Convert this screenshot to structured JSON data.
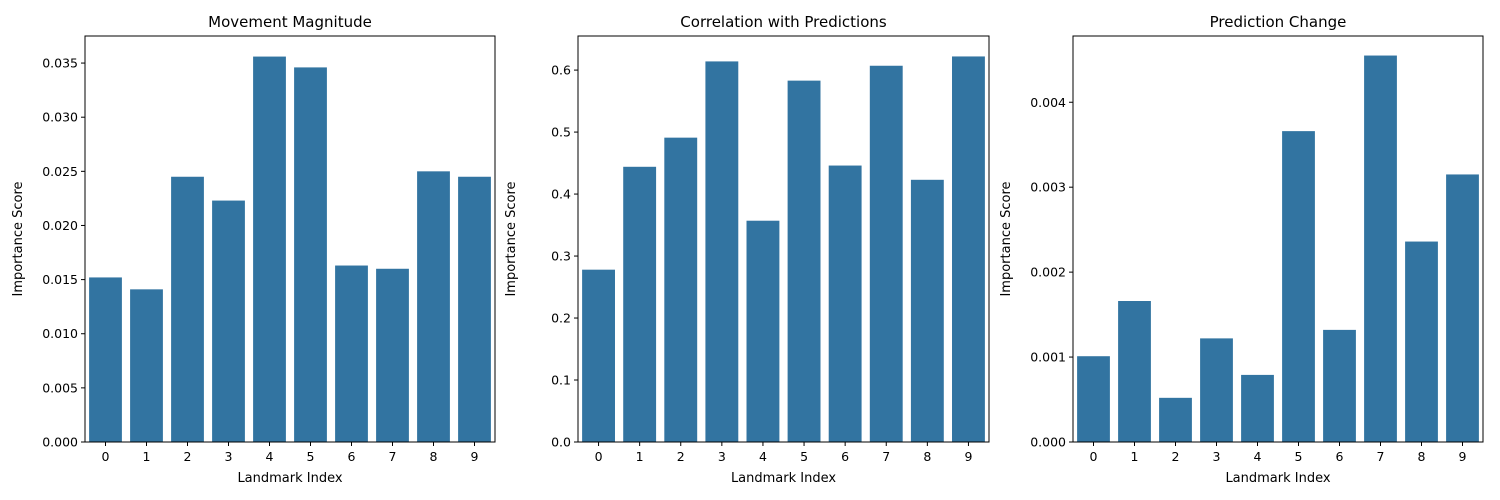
{
  "chart_data": [
    {
      "type": "bar",
      "title": "Movement Magnitude",
      "xlabel": "Landmark Index",
      "ylabel": "Importance Score",
      "categories": [
        "0",
        "1",
        "2",
        "3",
        "4",
        "5",
        "6",
        "7",
        "8",
        "9"
      ],
      "values": [
        0.0152,
        0.0141,
        0.0245,
        0.0223,
        0.0356,
        0.0346,
        0.0163,
        0.016,
        0.025,
        0.0245
      ],
      "ylim": [
        0,
        0.0375
      ],
      "yticks": [
        0.0,
        0.005,
        0.01,
        0.015,
        0.02,
        0.025,
        0.03,
        0.035
      ],
      "ytick_labels": [
        "0.000",
        "0.005",
        "0.010",
        "0.015",
        "0.020",
        "0.025",
        "0.030",
        "0.035"
      ],
      "grid": false,
      "color": "#3274a1"
    },
    {
      "type": "bar",
      "title": "Correlation with Predictions",
      "xlabel": "Landmark Index",
      "ylabel": "Importance Score",
      "categories": [
        "0",
        "1",
        "2",
        "3",
        "4",
        "5",
        "6",
        "7",
        "8",
        "9"
      ],
      "values": [
        0.278,
        0.444,
        0.491,
        0.614,
        0.357,
        0.583,
        0.446,
        0.607,
        0.423,
        0.622
      ],
      "ylim": [
        0,
        0.655
      ],
      "yticks": [
        0.0,
        0.1,
        0.2,
        0.3,
        0.4,
        0.5,
        0.6
      ],
      "ytick_labels": [
        "0.0",
        "0.1",
        "0.2",
        "0.3",
        "0.4",
        "0.5",
        "0.6"
      ],
      "grid": false,
      "color": "#3274a1"
    },
    {
      "type": "bar",
      "title": "Prediction Change",
      "xlabel": "Landmark Index",
      "ylabel": "Importance Score",
      "categories": [
        "0",
        "1",
        "2",
        "3",
        "4",
        "5",
        "6",
        "7",
        "8",
        "9"
      ],
      "values": [
        0.00101,
        0.00166,
        0.00052,
        0.00122,
        0.00079,
        0.00366,
        0.00132,
        0.00455,
        0.00236,
        0.00315
      ],
      "ylim": [
        0,
        0.00478
      ],
      "yticks": [
        0.0,
        0.001,
        0.002,
        0.003,
        0.004
      ],
      "ytick_labels": [
        "0.000",
        "0.001",
        "0.002",
        "0.003",
        "0.004"
      ],
      "grid": false,
      "color": "#3274a1"
    }
  ]
}
